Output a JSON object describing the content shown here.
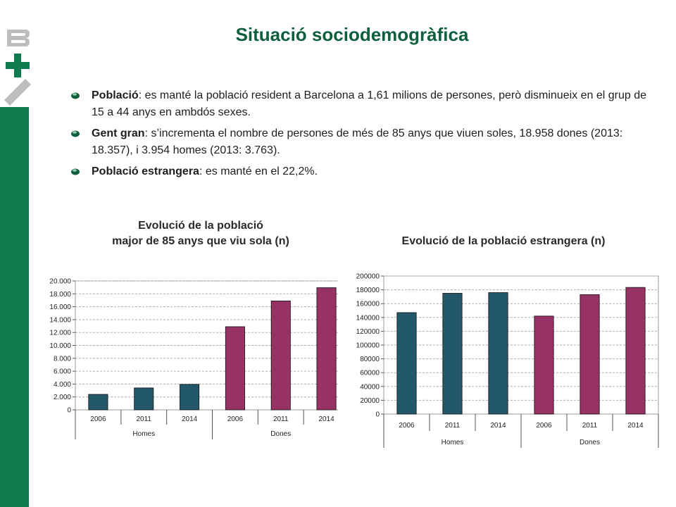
{
  "title": "Situació sociodemogràfica",
  "bullets": [
    {
      "head": "Població",
      "rest": ": es manté la població resident a Barcelona a 1,61 milions de persones, però disminueix en el grup de 15 a 44 anys en ambdós sexes."
    },
    {
      "head": "Gent gran",
      "rest": ": s’incrementa el nombre de persones de més de 85 anys que viuen soles, 18.958 dones (2013: 18.357), i 3.954 homes (2013: 3.763)."
    },
    {
      "head": "Població estrangera",
      "rest": ": es manté en el 22,2%."
    }
  ],
  "colors": {
    "homes": "#22586a",
    "dones": "#963264",
    "title": "#0e5f3e",
    "sidebar": "#0e7a4e"
  },
  "chart_data": [
    {
      "type": "bar",
      "title_line1": "Evolució de la població",
      "title_line2": "major de 85 anys que viu sola (n)",
      "groups": [
        "Homes",
        "Dones"
      ],
      "categories": [
        "2006",
        "2011",
        "2014",
        "2006",
        "2011",
        "2014"
      ],
      "values": [
        2400,
        3400,
        3954,
        12900,
        16900,
        18958
      ],
      "group_of": [
        0,
        0,
        0,
        1,
        1,
        1
      ],
      "ylim": [
        0,
        20000
      ],
      "yticks": [
        0,
        2000,
        4000,
        6000,
        8000,
        10000,
        12000,
        14000,
        16000,
        18000,
        20000
      ],
      "ytick_labels": [
        "0",
        "2.000",
        "4.000",
        "6.000",
        "8.000",
        "10.000",
        "12.000",
        "14.000",
        "16.000",
        "18.000",
        "20.000"
      ],
      "grid": true
    },
    {
      "type": "bar",
      "title": "Evolució de la població estrangera (n)",
      "groups": [
        "Homes",
        "Dones"
      ],
      "categories": [
        "2006",
        "2011",
        "2014",
        "2006",
        "2011",
        "2014"
      ],
      "values": [
        147000,
        175000,
        176000,
        142000,
        173000,
        183500
      ],
      "group_of": [
        0,
        0,
        0,
        1,
        1,
        1
      ],
      "ylim": [
        0,
        200000
      ],
      "yticks": [
        0,
        20000,
        40000,
        60000,
        80000,
        100000,
        120000,
        140000,
        160000,
        180000,
        200000
      ],
      "ytick_labels": [
        "0",
        "20000",
        "40000",
        "60000",
        "80000",
        "100000",
        "120000",
        "140000",
        "160000",
        "180000",
        "200000"
      ],
      "grid": true
    }
  ]
}
